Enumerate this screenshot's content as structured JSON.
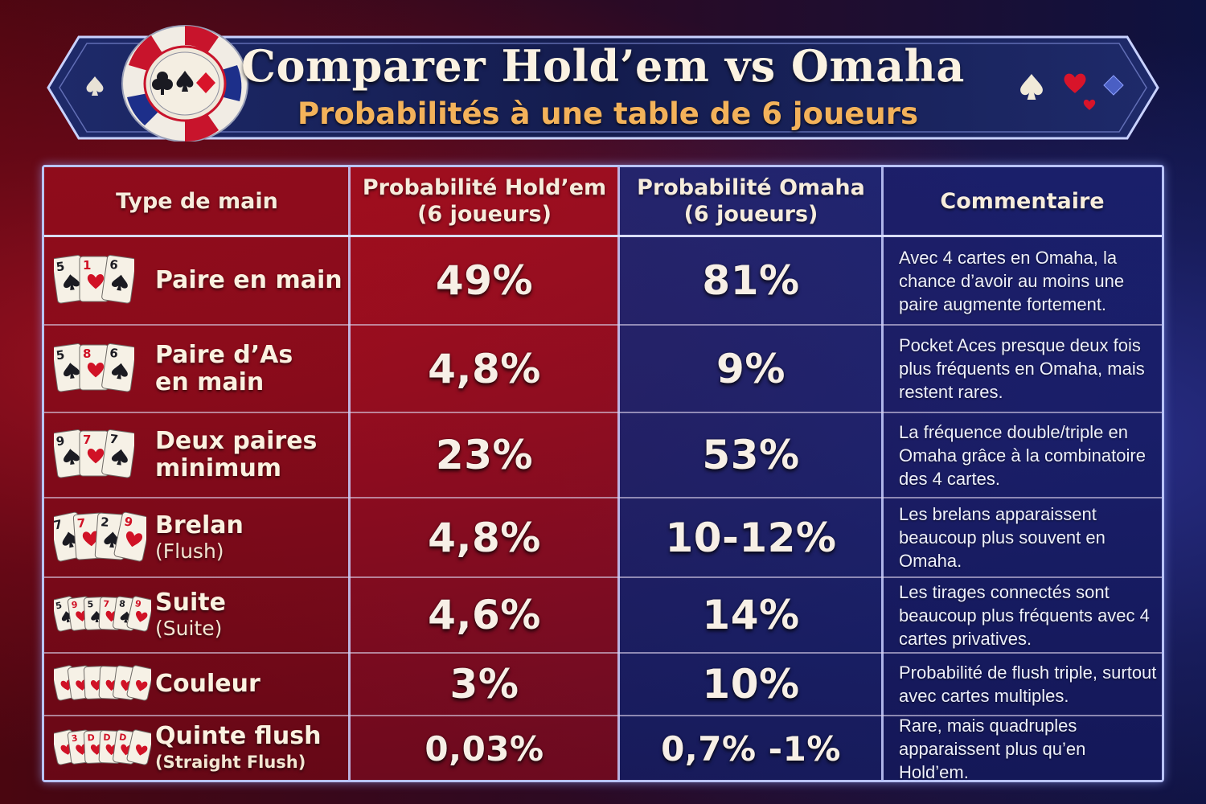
{
  "header": {
    "title": "Comparer Hold’em vs Omaha",
    "subtitle": "Probabilités à une table de 6 joueurs"
  },
  "columns": {
    "type": "Type de main",
    "holdem_line1": "Probabilité Hold’em",
    "holdem_line2": "(6 joueurs)",
    "omaha_line1": "Probabilité Omaha",
    "omaha_line2": "(6 joueurs)",
    "comment": "Commentaire"
  },
  "rows": [
    {
      "name": "Paire en main",
      "sub": "",
      "holdem": "49%",
      "omaha": "81%",
      "comment": "Avec 4 cartes en Omaha, la chance d’avoir au moins une paire augmente fortement.",
      "card_ranks": [
        "5",
        "1",
        "6"
      ]
    },
    {
      "name": "Paire d’As",
      "name2": "en main",
      "sub": "",
      "holdem": "4,8%",
      "omaha": "9%",
      "comment": "Pocket Aces presque deux fois plus fréquents en Omaha, mais restent rares.",
      "card_ranks": [
        "5",
        "8",
        "6"
      ]
    },
    {
      "name": "Deux paires",
      "name2": "minimum",
      "sub": "",
      "holdem": "23%",
      "omaha": "53%",
      "comment": "La fréquence double/triple en Omaha grâce à la combinatoire des 4 cartes.",
      "card_ranks": [
        "9",
        "7",
        "7"
      ]
    },
    {
      "name": "Brelan",
      "sub": "(Flush)",
      "holdem": "4,8%",
      "omaha": "10-12%",
      "comment": "Les brelans apparaissent beaucoup plus souvent en Omaha.",
      "card_ranks": [
        "7",
        "7",
        "2",
        "9"
      ]
    },
    {
      "name": "Suite",
      "sub": "(Suite)",
      "holdem": "4,6%",
      "omaha": "14%",
      "comment": "Les tirages connectés sont beaucoup plus fréquents avec 4 cartes privatives.",
      "card_ranks": [
        "5",
        "9",
        "5",
        "7",
        "8",
        "9"
      ]
    },
    {
      "name": "Couleur",
      "sub": "",
      "holdem": "3%",
      "omaha": "10%",
      "comment": "Probabilité de flush triple, surtout avec cartes multiples.",
      "card_ranks": [
        "",
        "",
        "",
        "",
        "",
        ""
      ]
    },
    {
      "name": "Quinte flush",
      "sub": "(Straight Flush)",
      "holdem": "0,03%",
      "omaha": "0,7% -1%",
      "comment": "Rare, mais quadruples apparaissent plus qu’en Hold’em.",
      "card_ranks": [
        "",
        "3",
        "D",
        "D",
        "D",
        ""
      ]
    }
  ],
  "colors": {
    "holdem_red": "#a00e1e",
    "omaha_blue": "#1e2878",
    "title_cream": "#fbf2e2",
    "subtitle_gold": "#f3b25a",
    "border": "#b9c3ff"
  },
  "icons": [
    "poker-chip-icon",
    "spade-icon",
    "heart-icon",
    "diamond-icon",
    "playing-cards-icon"
  ]
}
